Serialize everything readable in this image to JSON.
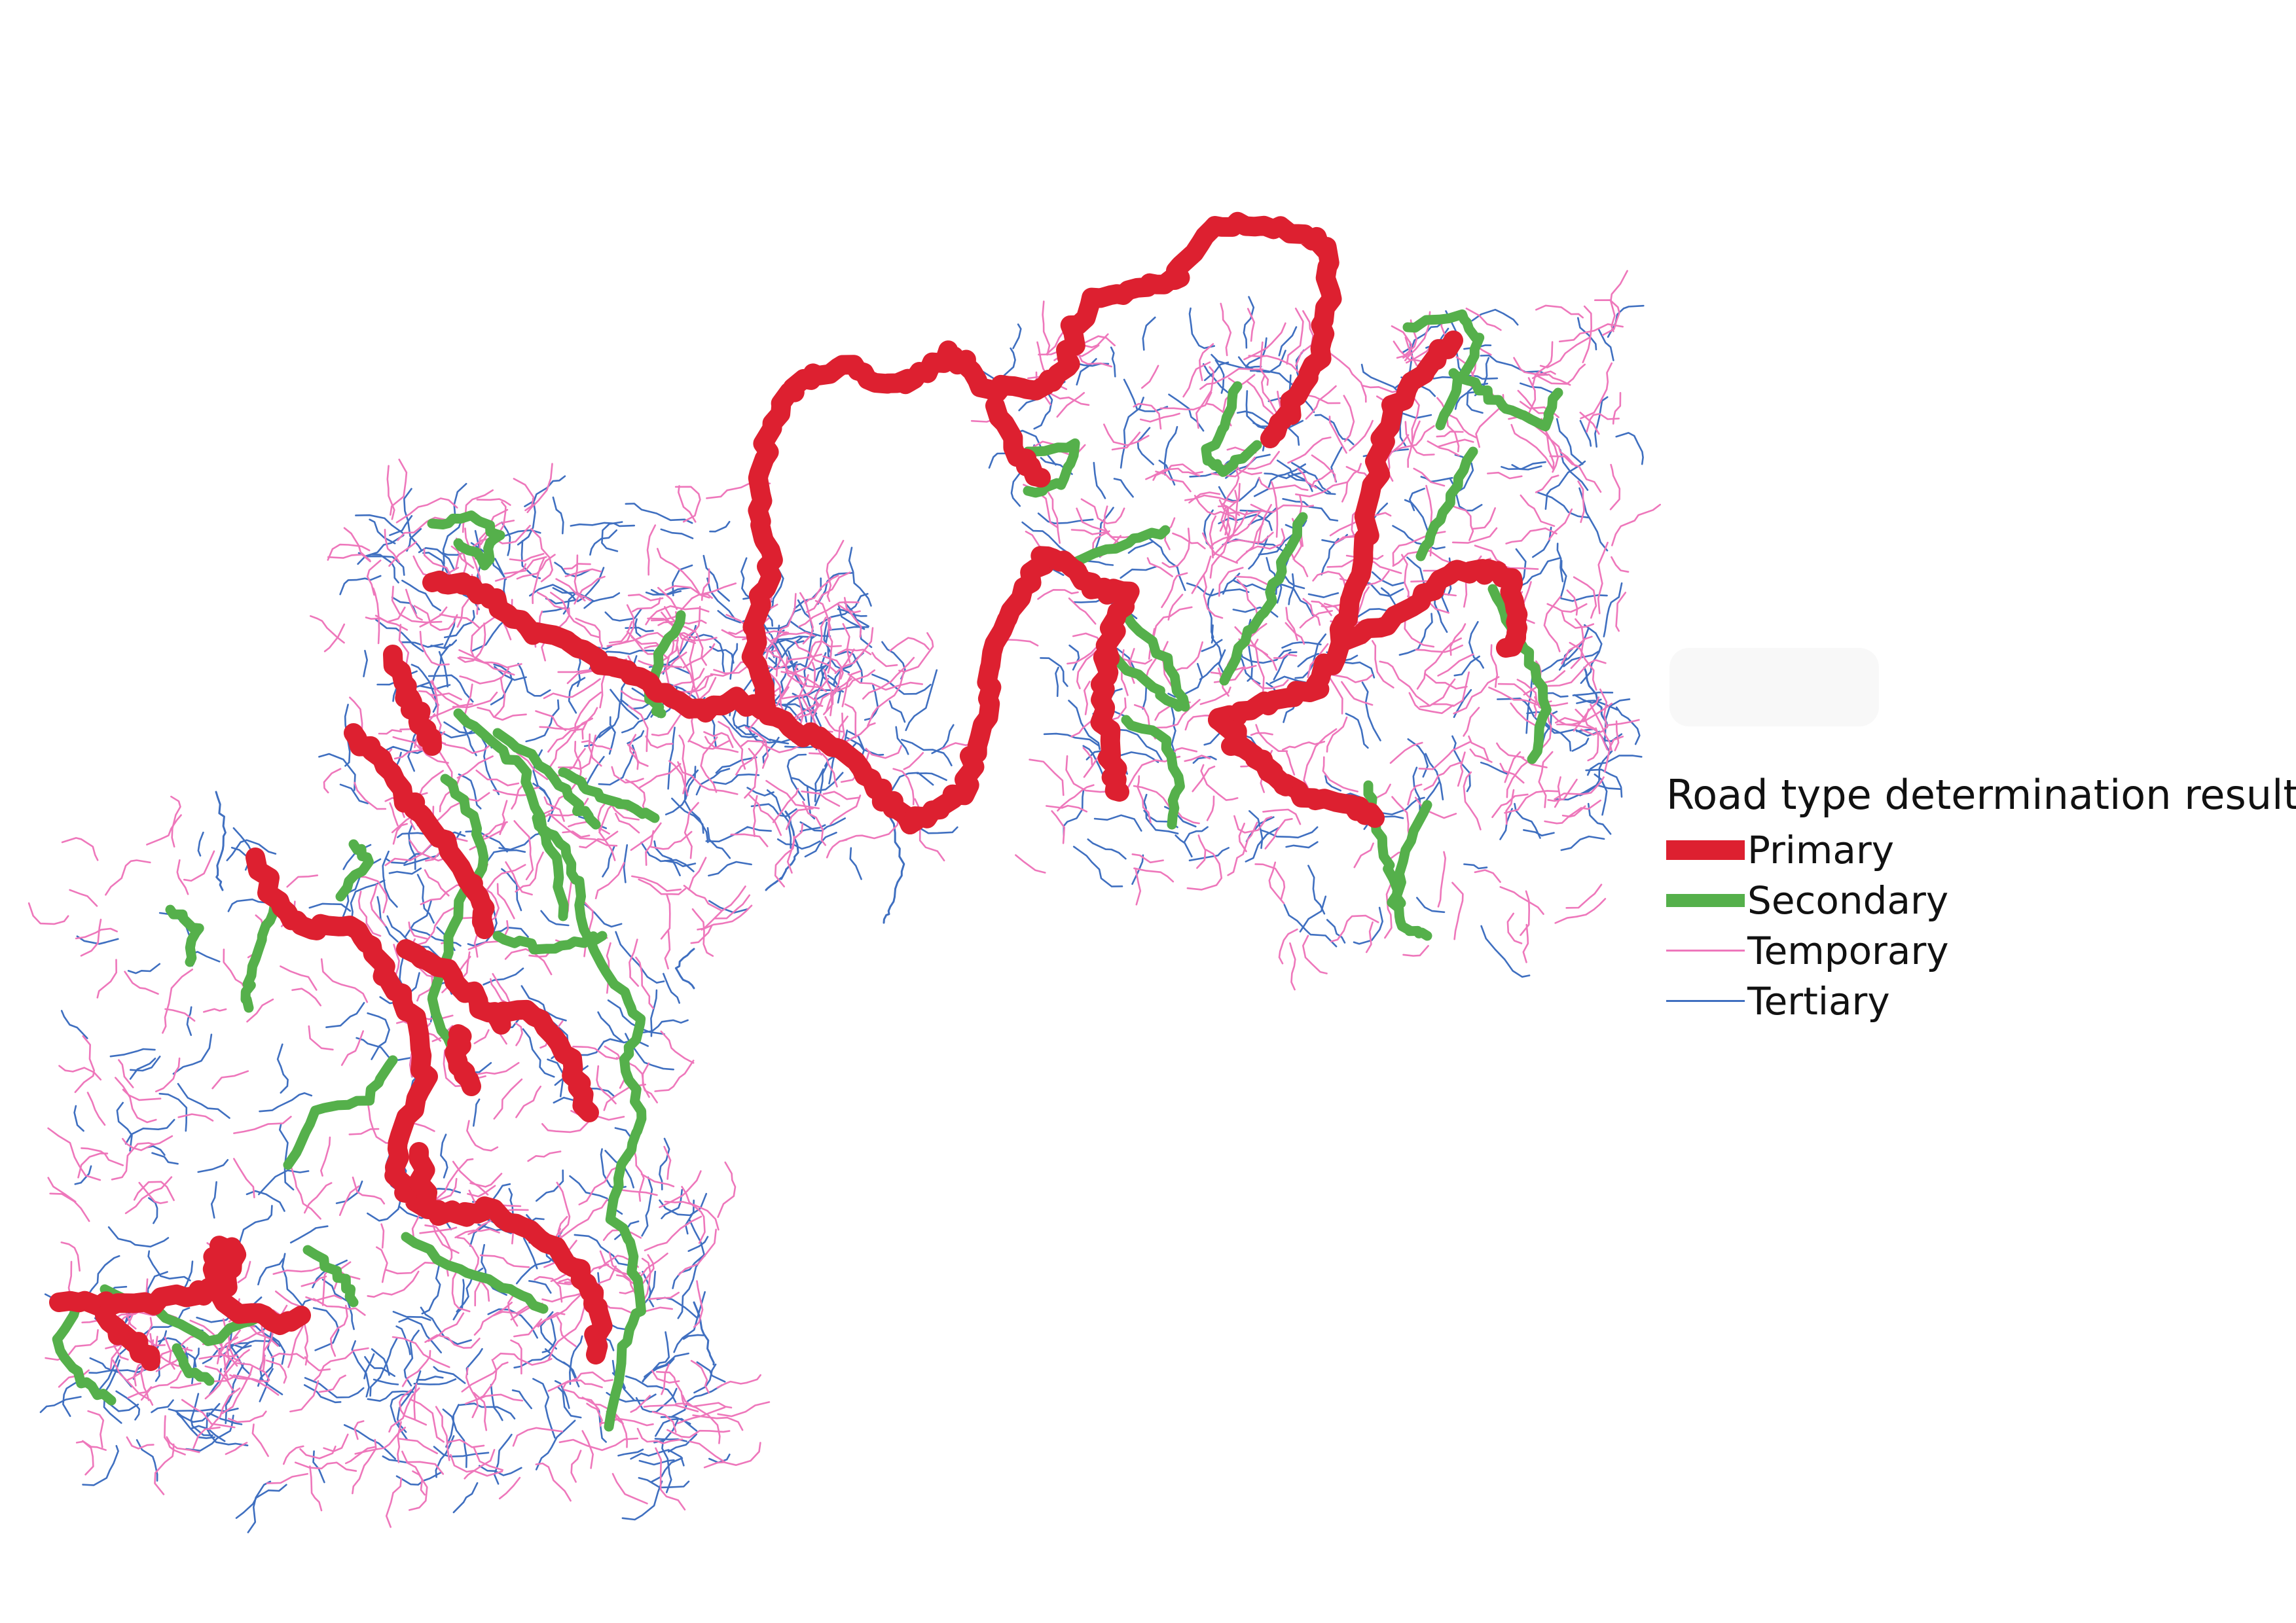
{
  "legend": {
    "title": "Road type determination result",
    "items": [
      {
        "key": "primary",
        "label": "Primary",
        "color": "#dd2030"
      },
      {
        "key": "secondary",
        "label": "Secondary",
        "color": "#55b04b"
      },
      {
        "key": "temporary",
        "label": "Temporary",
        "color": "#ee77bb"
      },
      {
        "key": "tertiary",
        "label": "Tertiary",
        "color": "#3f6fc0"
      }
    ]
  }
}
